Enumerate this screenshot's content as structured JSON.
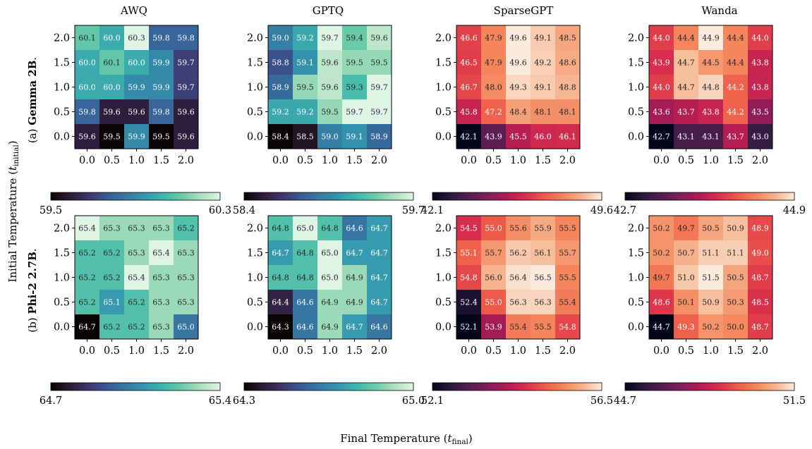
{
  "figure": {
    "column_titles": [
      "AWQ",
      "GPTQ",
      "SparseGPT",
      "Wanda"
    ],
    "row_labels": [
      {
        "prefix": "(a) ",
        "model": "Gemma 2B",
        "suffix": "."
      },
      {
        "prefix": "(b) ",
        "model": "Phi-2 2.7B",
        "suffix": "."
      }
    ],
    "x_axis_label": {
      "text": "Final Temperature (",
      "var": "t",
      "sub": "final",
      "close": ")"
    },
    "y_axis_label": {
      "text": "Initial Temperature (",
      "var": "t",
      "sub": "initial",
      "close": ")"
    }
  },
  "colormaps": {
    "mako": [
      "#0b0405",
      "#2b1c35",
      "#3e356b",
      "#3a5a95",
      "#357ba3",
      "#3496ae",
      "#40b7ad",
      "#6ccca6",
      "#aee0bf",
      "#def5e5"
    ],
    "rocket": [
      "#03051a",
      "#2b1b3e",
      "#571e4f",
      "#841e5a",
      "#b31b53",
      "#d9304b",
      "#ee5d49",
      "#f4875e",
      "#f6b48e",
      "#faebdd"
    ]
  },
  "chart_data": [
    {
      "type": "heatmap",
      "title": "AWQ",
      "row_label": "(a) Gemma 2B.",
      "colormap": "mako",
      "vmin": 59.5,
      "vmax": 60.3,
      "x_ticks": [
        "0.0",
        "0.5",
        "1.0",
        "1.5",
        "2.0"
      ],
      "y_ticks": [
        "2.0",
        "1.5",
        "1.0",
        "0.5",
        "0.0"
      ],
      "colorbar_ticks": [
        "59.5",
        "60.3"
      ],
      "values": [
        [
          60.1,
          60.0,
          60.3,
          59.8,
          59.8
        ],
        [
          60.0,
          60.1,
          60.0,
          59.9,
          59.7
        ],
        [
          60.0,
          60.0,
          59.9,
          59.9,
          59.7
        ],
        [
          59.8,
          59.6,
          59.6,
          59.8,
          59.6
        ],
        [
          59.6,
          59.5,
          59.9,
          59.5,
          59.6
        ]
      ]
    },
    {
      "type": "heatmap",
      "title": "GPTQ",
      "row_label": "(a) Gemma 2B.",
      "colormap": "mako",
      "vmin": 58.4,
      "vmax": 59.7,
      "x_ticks": [
        "0.0",
        "0.5",
        "1.0",
        "1.5",
        "2.0"
      ],
      "y_ticks": [
        "2.0",
        "1.5",
        "1.0",
        "0.5",
        "0.0"
      ],
      "colorbar_ticks": [
        "58.4",
        "59.7"
      ],
      "values": [
        [
          59.0,
          59.2,
          59.7,
          59.4,
          59.6
        ],
        [
          58.8,
          59.1,
          59.6,
          59.5,
          59.5
        ],
        [
          58.9,
          59.5,
          59.6,
          59.3,
          59.7
        ],
        [
          59.2,
          59.2,
          59.5,
          59.7,
          59.7
        ],
        [
          58.4,
          58.5,
          59.0,
          59.1,
          58.9
        ]
      ]
    },
    {
      "type": "heatmap",
      "title": "SparseGPT",
      "row_label": "(a) Gemma 2B.",
      "colormap": "rocket",
      "vmin": 42.1,
      "vmax": 49.6,
      "x_ticks": [
        "0.0",
        "0.5",
        "1.0",
        "1.5",
        "2.0"
      ],
      "y_ticks": [
        "2.0",
        "1.5",
        "1.0",
        "0.5",
        "0.0"
      ],
      "colorbar_ticks": [
        "42.1",
        "49.6"
      ],
      "values": [
        [
          46.6,
          47.9,
          49.6,
          49.1,
          48.5
        ],
        [
          46.5,
          47.9,
          49.6,
          49.2,
          48.6
        ],
        [
          46.7,
          48.0,
          49.3,
          49.1,
          48.8
        ],
        [
          45.8,
          47.2,
          48.4,
          48.1,
          48.1
        ],
        [
          42.1,
          43.9,
          45.5,
          46.0,
          46.1
        ]
      ]
    },
    {
      "type": "heatmap",
      "title": "Wanda",
      "row_label": "(a) Gemma 2B.",
      "colormap": "rocket",
      "vmin": 42.7,
      "vmax": 44.9,
      "x_ticks": [
        "0.0",
        "0.5",
        "1.0",
        "1.5",
        "2.0"
      ],
      "y_ticks": [
        "2.0",
        "1.5",
        "1.0",
        "0.5",
        "0.0"
      ],
      "colorbar_ticks": [
        "42.7",
        "44.9"
      ],
      "values": [
        [
          44.0,
          44.4,
          44.9,
          44.4,
          44.0
        ],
        [
          43.9,
          44.7,
          44.5,
          44.4,
          43.8
        ],
        [
          44.0,
          44.7,
          44.8,
          44.2,
          43.8
        ],
        [
          43.6,
          43.7,
          43.8,
          44.2,
          43.5
        ],
        [
          42.7,
          43.1,
          43.1,
          43.7,
          43.0
        ]
      ]
    },
    {
      "type": "heatmap",
      "title": "AWQ",
      "row_label": "(b) Phi-2 2.7B.",
      "colormap": "mako",
      "vmin": 64.7,
      "vmax": 65.4,
      "x_ticks": [
        "0.0",
        "0.5",
        "1.0",
        "1.5",
        "2.0"
      ],
      "y_ticks": [
        "2.0",
        "1.5",
        "1.0",
        "0.5",
        "0.0"
      ],
      "colorbar_ticks": [
        "64.7",
        "65.4"
      ],
      "values": [
        [
          65.4,
          65.3,
          65.3,
          65.3,
          65.2
        ],
        [
          65.2,
          65.2,
          65.3,
          65.4,
          65.3
        ],
        [
          65.2,
          65.2,
          65.4,
          65.3,
          65.3
        ],
        [
          65.2,
          65.1,
          65.2,
          65.3,
          65.3
        ],
        [
          64.7,
          65.2,
          65.2,
          65.3,
          65.0
        ]
      ]
    },
    {
      "type": "heatmap",
      "title": "GPTQ",
      "row_label": "(b) Phi-2 2.7B.",
      "colormap": "mako",
      "vmin": 64.3,
      "vmax": 65.0,
      "x_ticks": [
        "0.0",
        "0.5",
        "1.0",
        "1.5",
        "2.0"
      ],
      "y_ticks": [
        "2.0",
        "1.5",
        "1.0",
        "0.5",
        "0.0"
      ],
      "colorbar_ticks": [
        "64.3",
        "65.0"
      ],
      "values": [
        [
          64.8,
          65.0,
          64.8,
          64.6,
          64.7
        ],
        [
          64.7,
          64.8,
          65.0,
          64.7,
          64.7
        ],
        [
          64.8,
          64.8,
          65.0,
          64.9,
          64.7
        ],
        [
          64.4,
          64.6,
          64.9,
          64.9,
          64.7
        ],
        [
          64.3,
          64.6,
          64.9,
          64.7,
          64.6
        ]
      ]
    },
    {
      "type": "heatmap",
      "title": "SparseGPT",
      "row_label": "(b) Phi-2 2.7B.",
      "colormap": "rocket",
      "vmin": 52.1,
      "vmax": 56.5,
      "x_ticks": [
        "0.0",
        "0.5",
        "1.0",
        "1.5",
        "2.0"
      ],
      "y_ticks": [
        "2.0",
        "1.5",
        "1.0",
        "0.5",
        "0.0"
      ],
      "colorbar_ticks": [
        "52.1",
        "56.5"
      ],
      "values": [
        [
          54.5,
          55.0,
          55.6,
          55.9,
          55.5
        ],
        [
          55.1,
          55.7,
          56.2,
          56.1,
          55.7
        ],
        [
          54.8,
          56.0,
          56.4,
          56.5,
          55.5
        ],
        [
          52.4,
          55.0,
          56.3,
          56.3,
          55.4
        ],
        [
          52.1,
          53.9,
          55.4,
          55.5,
          54.8
        ]
      ]
    },
    {
      "type": "heatmap",
      "title": "Wanda",
      "row_label": "(b) Phi-2 2.7B.",
      "colormap": "rocket",
      "vmin": 44.7,
      "vmax": 51.5,
      "x_ticks": [
        "0.0",
        "0.5",
        "1.0",
        "1.5",
        "2.0"
      ],
      "y_ticks": [
        "2.0",
        "1.5",
        "1.0",
        "0.5",
        "0.0"
      ],
      "colorbar_ticks": [
        "44.7",
        "51.5"
      ],
      "values": [
        [
          50.2,
          49.7,
          50.5,
          50.9,
          48.9
        ],
        [
          50.2,
          50.7,
          51.1,
          51.1,
          49.0
        ],
        [
          49.7,
          51.0,
          51.5,
          50.5,
          48.7
        ],
        [
          48.6,
          50.1,
          50.9,
          50.3,
          48.5
        ],
        [
          44.7,
          49.3,
          50.2,
          50.0,
          48.7
        ]
      ]
    }
  ]
}
